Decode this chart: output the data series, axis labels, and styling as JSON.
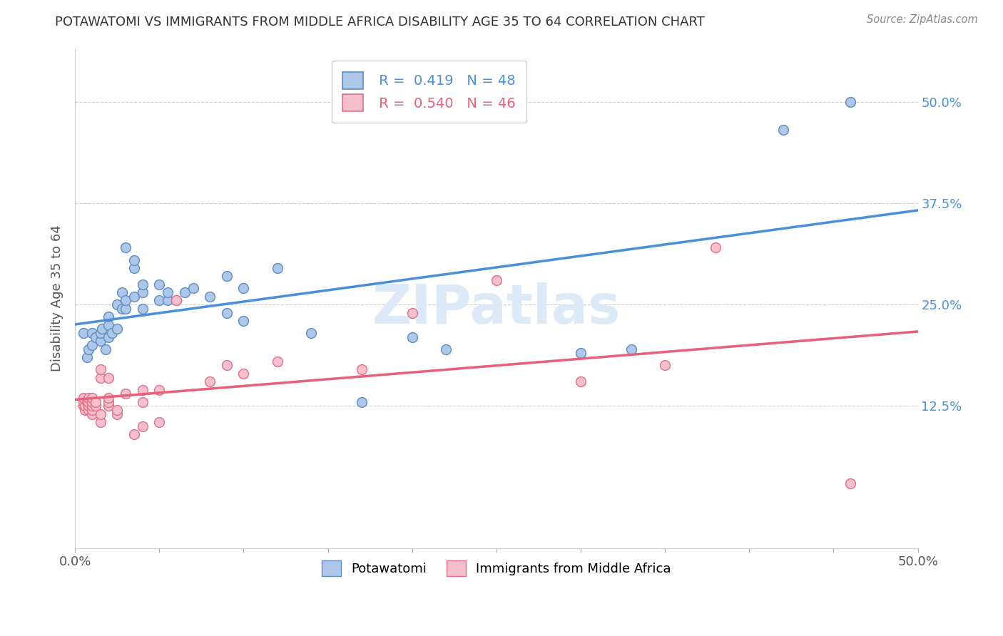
{
  "title": "POTAWATOMI VS IMMIGRANTS FROM MIDDLE AFRICA DISABILITY AGE 35 TO 64 CORRELATION CHART",
  "source": "Source: ZipAtlas.com",
  "ylabel": "Disability Age 35 to 64",
  "xlim": [
    0.0,
    0.5
  ],
  "ylim": [
    -0.05,
    0.565
  ],
  "yticks": [
    0.125,
    0.25,
    0.375,
    0.5
  ],
  "yticklabels": [
    "12.5%",
    "25.0%",
    "37.5%",
    "50.0%"
  ],
  "r_blue": 0.419,
  "n_blue": 48,
  "r_pink": 0.54,
  "n_pink": 46,
  "blue_scatter": [
    [
      0.005,
      0.215
    ],
    [
      0.007,
      0.185
    ],
    [
      0.008,
      0.195
    ],
    [
      0.01,
      0.2
    ],
    [
      0.01,
      0.215
    ],
    [
      0.012,
      0.21
    ],
    [
      0.015,
      0.205
    ],
    [
      0.015,
      0.215
    ],
    [
      0.016,
      0.22
    ],
    [
      0.018,
      0.195
    ],
    [
      0.02,
      0.21
    ],
    [
      0.02,
      0.225
    ],
    [
      0.02,
      0.235
    ],
    [
      0.022,
      0.215
    ],
    [
      0.025,
      0.22
    ],
    [
      0.025,
      0.25
    ],
    [
      0.028,
      0.245
    ],
    [
      0.028,
      0.265
    ],
    [
      0.03,
      0.245
    ],
    [
      0.03,
      0.255
    ],
    [
      0.03,
      0.32
    ],
    [
      0.035,
      0.26
    ],
    [
      0.035,
      0.295
    ],
    [
      0.035,
      0.305
    ],
    [
      0.04,
      0.245
    ],
    [
      0.04,
      0.265
    ],
    [
      0.04,
      0.275
    ],
    [
      0.05,
      0.255
    ],
    [
      0.05,
      0.275
    ],
    [
      0.055,
      0.255
    ],
    [
      0.055,
      0.265
    ],
    [
      0.06,
      0.255
    ],
    [
      0.065,
      0.265
    ],
    [
      0.07,
      0.27
    ],
    [
      0.08,
      0.26
    ],
    [
      0.09,
      0.24
    ],
    [
      0.09,
      0.285
    ],
    [
      0.1,
      0.23
    ],
    [
      0.1,
      0.27
    ],
    [
      0.12,
      0.295
    ],
    [
      0.14,
      0.215
    ],
    [
      0.17,
      0.13
    ],
    [
      0.2,
      0.21
    ],
    [
      0.22,
      0.195
    ],
    [
      0.3,
      0.19
    ],
    [
      0.33,
      0.195
    ],
    [
      0.42,
      0.465
    ],
    [
      0.46,
      0.5
    ]
  ],
  "pink_scatter": [
    [
      0.005,
      0.125
    ],
    [
      0.005,
      0.13
    ],
    [
      0.005,
      0.135
    ],
    [
      0.006,
      0.12
    ],
    [
      0.006,
      0.125
    ],
    [
      0.007,
      0.13
    ],
    [
      0.008,
      0.12
    ],
    [
      0.008,
      0.125
    ],
    [
      0.008,
      0.13
    ],
    [
      0.008,
      0.135
    ],
    [
      0.01,
      0.115
    ],
    [
      0.01,
      0.12
    ],
    [
      0.01,
      0.125
    ],
    [
      0.01,
      0.13
    ],
    [
      0.01,
      0.135
    ],
    [
      0.012,
      0.125
    ],
    [
      0.012,
      0.13
    ],
    [
      0.015,
      0.105
    ],
    [
      0.015,
      0.115
    ],
    [
      0.015,
      0.16
    ],
    [
      0.015,
      0.17
    ],
    [
      0.02,
      0.125
    ],
    [
      0.02,
      0.13
    ],
    [
      0.02,
      0.135
    ],
    [
      0.02,
      0.16
    ],
    [
      0.025,
      0.115
    ],
    [
      0.025,
      0.12
    ],
    [
      0.03,
      0.14
    ],
    [
      0.035,
      0.09
    ],
    [
      0.04,
      0.1
    ],
    [
      0.04,
      0.13
    ],
    [
      0.04,
      0.145
    ],
    [
      0.05,
      0.105
    ],
    [
      0.05,
      0.145
    ],
    [
      0.06,
      0.255
    ],
    [
      0.08,
      0.155
    ],
    [
      0.09,
      0.175
    ],
    [
      0.1,
      0.165
    ],
    [
      0.12,
      0.18
    ],
    [
      0.17,
      0.17
    ],
    [
      0.2,
      0.24
    ],
    [
      0.25,
      0.28
    ],
    [
      0.3,
      0.155
    ],
    [
      0.35,
      0.175
    ],
    [
      0.38,
      0.32
    ],
    [
      0.46,
      0.03
    ]
  ],
  "blue_color": "#aec6e8",
  "blue_edge": "#5b8ec4",
  "pink_color": "#f5bfcc",
  "pink_edge": "#e0708a",
  "line_blue": "#4a90d9",
  "line_pink": "#e8607a",
  "line_dash_blue": "#c0c0c0",
  "line_dash_pink": "#f0a0b0",
  "background": "#ffffff",
  "grid_color": "#d0d0d0"
}
